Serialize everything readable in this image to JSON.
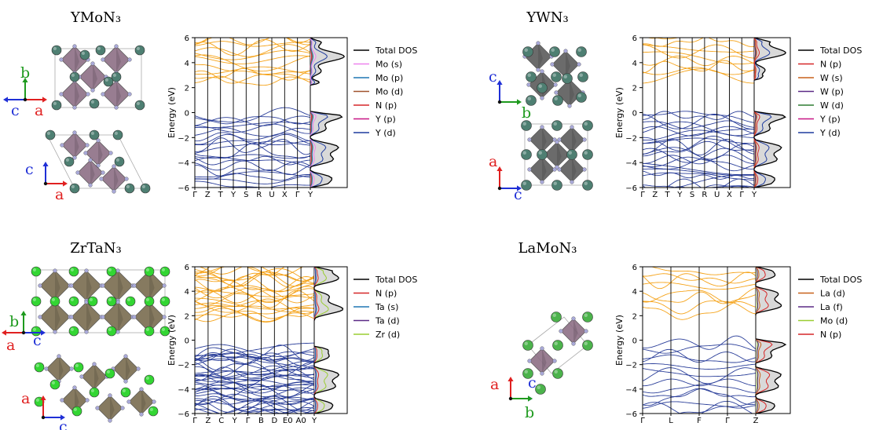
{
  "figure": {
    "panels": [
      {
        "title": "YMoN₃",
        "axes_letters": [
          {
            "letters": [
              "b",
              "c",
              "a"
            ]
          },
          {
            "letters": [
              "c",
              "a"
            ]
          }
        ]
      },
      {
        "title": "YWN₃",
        "axes_letters": [
          {
            "letters": [
              "c",
              "b"
            ]
          },
          {
            "letters": [
              "a",
              "c"
            ]
          }
        ]
      },
      {
        "title": "ZrTaN₃",
        "axes_letters": [
          {
            "letters": [
              "b",
              "c",
              "a"
            ]
          },
          {
            "letters": [
              "a",
              "c"
            ]
          }
        ]
      },
      {
        "title": "LaMoN₃",
        "axes_letters": [
          {
            "letters": [
              "a",
              "c",
              "b"
            ]
          }
        ]
      }
    ],
    "colors": {
      "conduction_bands": "#f5a31a",
      "valence_bands": "#2b3f9a",
      "dos_fill": "#d9d9d9",
      "atom_Y": "#4e7f72",
      "atom_Zr": "#33d633",
      "atom_La": "#4cb34c",
      "atom_N": "#a9a9d8",
      "octa_Mo": "#8d6f86",
      "octa_W": "#5c5c5c",
      "octa_Ta": "#7a6c4f",
      "axis_a": "#e02020",
      "axis_b": "#1e9a1e",
      "axis_c": "#1f2fd6"
    }
  },
  "chart_data": [
    {
      "type": "line",
      "title": "YMoN₃",
      "ylabel": "Energy (eV)",
      "ylim": [
        -6,
        6
      ],
      "yticks": [
        6,
        4,
        2,
        0,
        -2,
        -4,
        -6
      ],
      "kpath": [
        "Γ",
        "Z",
        "T",
        "Y",
        "S",
        "R",
        "U",
        "X",
        "Γ",
        "Y"
      ],
      "legend": [
        "Total DOS",
        "Mo (s)",
        "Mo (p)",
        "Mo (d)",
        "N (p)",
        "Y (p)",
        "Y (d)"
      ],
      "legend_colors": [
        "#000000",
        "#ee82ee",
        "#1f77b4",
        "#a0522d",
        "#d62728",
        "#c71585",
        "#1f3c9e"
      ],
      "band_gap": {
        "vbm": 0.1,
        "cbm": 2.2
      },
      "band_series": {
        "conduction": 14,
        "valence": 24
      }
    },
    {
      "type": "line",
      "title": "YWN₃",
      "ylabel": "Energy (eV)",
      "ylim": [
        -6,
        6
      ],
      "yticks": [
        6,
        4,
        2,
        0,
        -2,
        -4,
        -6
      ],
      "kpath": [
        "Γ",
        "Z",
        "T",
        "Y",
        "S",
        "R",
        "U",
        "X",
        "Γ",
        "Y"
      ],
      "legend": [
        "Total DOS",
        "N (p)",
        "W (s)",
        "W (p)",
        "W (d)",
        "Y (p)",
        "Y (d)"
      ],
      "legend_colors": [
        "#000000",
        "#d62728",
        "#c8611a",
        "#5b2a86",
        "#2e7d32",
        "#c71585",
        "#1f3c9e"
      ],
      "band_gap": {
        "vbm": 0.1,
        "cbm": 2.6
      },
      "band_series": {
        "conduction": 10,
        "valence": 26
      }
    },
    {
      "type": "line",
      "title": "ZrTaN₃",
      "ylabel": "Energy (eV)",
      "ylim": [
        -6,
        6
      ],
      "yticks": [
        6,
        4,
        2,
        0,
        -2,
        -4,
        -6
      ],
      "kpath": [
        "Γ",
        "Z",
        "C",
        "Y",
        "Γ",
        "B",
        "D",
        "E0",
        "A0",
        "Y"
      ],
      "legend": [
        "Total DOS",
        "N (p)",
        "Ta (s)",
        "Ta (d)",
        "Zr (d)"
      ],
      "legend_colors": [
        "#000000",
        "#d62728",
        "#1f77b4",
        "#5b2a86",
        "#9acd32"
      ],
      "band_gap": {
        "vbm": -0.5,
        "cbm": 1.6
      },
      "band_series": {
        "conduction": 26,
        "valence": 44
      }
    },
    {
      "type": "line",
      "title": "LaMoN₃",
      "ylabel": "Energy (eV)",
      "ylim": [
        -6,
        6
      ],
      "yticks": [
        6,
        4,
        2,
        0,
        -2,
        -4,
        -6
      ],
      "kpath": [
        "Γ",
        "L",
        "F",
        "Γ",
        "Z"
      ],
      "legend": [
        "Total DOS",
        "La (d)",
        "La (f)",
        "Mo (d)",
        "N (p)"
      ],
      "legend_colors": [
        "#000000",
        "#c8611a",
        "#5b2a86",
        "#9acd32",
        "#d62728"
      ],
      "band_gap": {
        "vbm": 0.1,
        "cbm": 2.0
      },
      "band_series": {
        "conduction": 9,
        "valence": 15
      }
    }
  ]
}
